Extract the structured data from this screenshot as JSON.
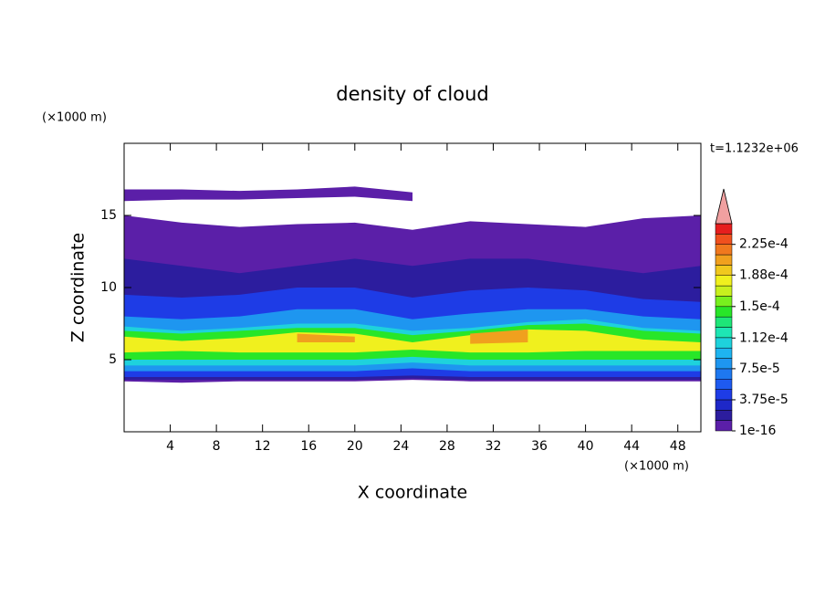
{
  "chart_data": {
    "type": "contour",
    "title": "density of cloud",
    "xlabel": "X coordinate",
    "ylabel": "Z coordinate",
    "xunit": "(×1000 m)",
    "yunit": "(×1000 m)",
    "time_label": "t=1.1232e+06",
    "xlim": [
      0,
      50
    ],
    "ylim": [
      0,
      20
    ],
    "xticks": [
      4,
      8,
      12,
      16,
      20,
      24,
      28,
      32,
      36,
      40,
      44,
      48
    ],
    "yticks": [
      5,
      10,
      15
    ],
    "colors": [
      "#5b1fa8",
      "#2c1d9e",
      "#1e28c8",
      "#1e3ce6",
      "#1e5af0",
      "#1e78f0",
      "#1e96f0",
      "#1eb4f0",
      "#1ed2dc",
      "#1ee6b4",
      "#1ee678",
      "#28e628",
      "#78f01e",
      "#c8f01e",
      "#f0f01e",
      "#f0c81e",
      "#f0a01e",
      "#f0781e",
      "#f0501e",
      "#e61e1e"
    ],
    "over_color": "#f0a0a0",
    "color_ticks": [
      {
        "value": 1e-16,
        "label": "1e-16"
      },
      {
        "value": 3.75e-05,
        "label": "3.75e-5"
      },
      {
        "value": 7.5e-05,
        "label": "7.5e-5"
      },
      {
        "value": 0.000112,
        "label": "1.12e-4"
      },
      {
        "value": 0.00015,
        "label": "1.5e-4"
      },
      {
        "value": 0.000188,
        "label": "1.88e-4"
      },
      {
        "value": 0.000225,
        "label": "2.25e-4"
      }
    ],
    "color_range": [
      1e-16,
      0.00025
    ],
    "x": [
      0,
      5,
      10,
      15,
      20,
      25,
      30,
      35,
      40,
      45,
      50
    ],
    "layers": [
      {
        "level": 0,
        "top": [
          16.8,
          16.8,
          16.7,
          16.8,
          17,
          16.6,
          null,
          null,
          null,
          null,
          null
        ],
        "bottom": [
          16,
          16.1,
          16.1,
          16.2,
          16.3,
          16,
          null,
          null,
          null,
          null,
          null
        ]
      },
      {
        "level": 0,
        "top": [
          15,
          14.5,
          14.2,
          14.4,
          14.5,
          14,
          14.6,
          14.4,
          14.2,
          14.8,
          15
        ],
        "bottom": [
          3.5,
          3.4,
          3.5,
          3.5,
          3.5,
          3.6,
          3.5,
          3.5,
          3.5,
          3.5,
          3.5
        ]
      },
      {
        "level": 1,
        "top": [
          12,
          11.5,
          11,
          11.5,
          12,
          11.5,
          12,
          12,
          11.5,
          11,
          11.5
        ],
        "bottom": [
          3.6,
          3.6,
          3.6,
          3.6,
          3.6,
          3.7,
          3.6,
          3.6,
          3.6,
          3.6,
          3.6
        ]
      },
      {
        "level": 3,
        "top": [
          9.5,
          9.3,
          9.5,
          10,
          10,
          9.3,
          9.8,
          10,
          9.8,
          9.2,
          9
        ],
        "bottom": [
          3.8,
          3.8,
          3.8,
          3.8,
          3.8,
          3.9,
          3.8,
          3.8,
          3.8,
          3.8,
          3.8
        ]
      },
      {
        "level": 6,
        "top": [
          8,
          7.8,
          8,
          8.5,
          8.5,
          7.8,
          8.2,
          8.5,
          8.5,
          8,
          7.8
        ],
        "bottom": [
          4.2,
          4.2,
          4.2,
          4.2,
          4.2,
          4.4,
          4.2,
          4.2,
          4.2,
          4.2,
          4.2
        ]
      },
      {
        "level": 8,
        "top": [
          7.3,
          7,
          7.2,
          7.5,
          7.5,
          7,
          7.2,
          7.6,
          7.8,
          7.2,
          7
        ],
        "bottom": [
          4.6,
          4.6,
          4.6,
          4.6,
          4.6,
          4.8,
          4.6,
          4.6,
          4.6,
          4.6,
          4.6
        ]
      },
      {
        "level": 11,
        "top": [
          7,
          6.8,
          7,
          7.2,
          7.2,
          6.7,
          7,
          7.4,
          7.5,
          7,
          6.8
        ],
        "bottom": [
          5,
          5,
          5,
          5,
          5,
          5.2,
          5,
          5,
          5,
          5,
          5
        ]
      },
      {
        "level": 14,
        "top": [
          6.6,
          6.3,
          6.5,
          6.9,
          6.8,
          6.2,
          6.7,
          7.1,
          7,
          6.4,
          6.2
        ],
        "bottom": [
          5.5,
          5.6,
          5.5,
          5.5,
          5.5,
          5.7,
          5.5,
          5.5,
          5.6,
          5.6,
          5.6
        ]
      },
      {
        "level": 16,
        "top": [
          null,
          null,
          null,
          6.8,
          6.6,
          null,
          6.8,
          7.1,
          null,
          null,
          null
        ],
        "bottom": [
          null,
          null,
          null,
          6.2,
          6.2,
          null,
          6.1,
          6.2,
          null,
          null,
          null
        ]
      }
    ]
  }
}
